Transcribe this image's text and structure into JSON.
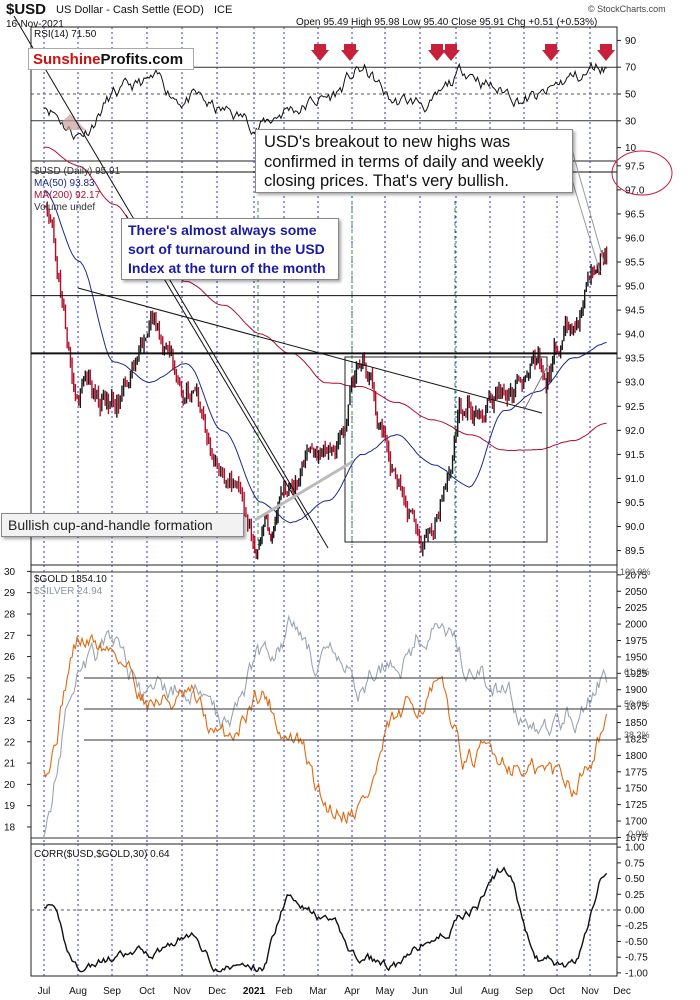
{
  "header": {
    "symbol": "$USD",
    "description": "US Dollar - Cash Settle (EOD)",
    "exchange": "ICE",
    "date": "16-Nov-2021",
    "ohlc": "Open 95.49  High 95.98  Low 95.40  Close 95.91  Chg +0.51 (+0.53%)",
    "copyright": "© StockCharts.com"
  },
  "logo": {
    "part1": "Sunshine",
    "part2": "Profits.com"
  },
  "callouts": {
    "breakout": "USD's breakout to new highs was confirmed in terms of daily and weekly closing prices. That's very bullish.",
    "turnaround": "There's almost always some sort of turnaround in the USD Index at the turn of the month",
    "cup_handle": "Bullish cup-and-handle formation"
  },
  "legends": {
    "rsi": "RSI(14) 71.50",
    "usd": "$USD (Daily) 95.91",
    "ma50": "MA(50) 93.83",
    "ma200": "MA(200) 92.17",
    "volume": "Volume undef",
    "gold": "$GOLD 1854.10",
    "silver": "$SILVER 24.94",
    "corr": "CORR($USD,$GOLD,30) 0.64"
  },
  "fib_labels": [
    "100.0%",
    "61.8%",
    "50.0%",
    "38.2%",
    "0.0%"
  ],
  "x_axis": {
    "labels": [
      "Jul",
      "Aug",
      "Sep",
      "Oct",
      "Nov",
      "Dec",
      "2021",
      "Feb",
      "Mar",
      "Apr",
      "May",
      "Jun",
      "Jul",
      "Aug",
      "Sep",
      "Oct",
      "Nov",
      "Dec"
    ]
  },
  "colors": {
    "usd_bar": "#1a1a1a",
    "usd_bar_down": "#b0102a",
    "ma50": "#1a2a8c",
    "ma200": "#b01030",
    "gold": "#e06a10",
    "silver": "#9aa6b0",
    "arrow": "#c8203a",
    "annotation_blue": "#1a1aa8",
    "logo_red": "#d01010"
  },
  "chart_data": [
    {
      "type": "line",
      "title": "RSI(14)",
      "ylim": [
        0,
        100
      ],
      "yticks": [
        10,
        30,
        50,
        70,
        90
      ],
      "x": [
        "Jul",
        "Aug",
        "Sep",
        "Oct",
        "Nov",
        "Dec",
        "2021",
        "Feb",
        "Mar",
        "Apr",
        "May",
        "Jun",
        "Jul",
        "Aug",
        "Sep",
        "Oct",
        "Nov"
      ],
      "series": [
        {
          "name": "RSI(14)",
          "values": [
            44,
            22,
            48,
            56,
            48,
            35,
            28,
            40,
            47,
            66,
            43,
            42,
            67,
            52,
            46,
            61,
            71.5
          ]
        }
      ]
    },
    {
      "type": "line",
      "title": "$USD (Daily)",
      "ylim": [
        89.2,
        97.6
      ],
      "yticks": [
        89.5,
        90.0,
        90.5,
        91.0,
        91.5,
        92.0,
        92.5,
        93.0,
        93.5,
        94.0,
        94.5,
        95.0,
        95.5,
        96.0,
        96.5,
        97.0,
        97.5
      ],
      "x": [
        "Jul",
        "Aug",
        "Sep",
        "Oct",
        "Nov",
        "Dec",
        "2021",
        "Feb",
        "Mar",
        "Apr",
        "May",
        "Jun",
        "Jul",
        "Aug",
        "Sep",
        "Oct",
        "Nov"
      ],
      "series": [
        {
          "name": "$USD (Daily)",
          "values": [
            96.9,
            93.4,
            92.4,
            93.9,
            93.0,
            91.0,
            89.8,
            90.6,
            91.6,
            93.3,
            91.0,
            90.0,
            92.7,
            92.8,
            93.2,
            94.1,
            95.91
          ]
        },
        {
          "name": "MA(50)",
          "values": [
            97.0,
            95.5,
            93.4,
            93.0,
            93.4,
            92.0,
            90.5,
            90.1,
            90.5,
            91.5,
            91.9,
            91.3,
            90.8,
            92.4,
            92.8,
            93.5,
            93.83
          ]
        },
        {
          "name": "MA(200)",
          "values": [
            97.9,
            97.5,
            96.7,
            95.8,
            95.1,
            94.6,
            94.0,
            93.6,
            93.0,
            92.9,
            92.6,
            92.2,
            91.9,
            91.6,
            91.6,
            91.8,
            92.17
          ]
        }
      ],
      "horizontal_levels": [
        94.8,
        93.6
      ]
    },
    {
      "type": "line",
      "title": "$GOLD vs $SILVER",
      "ylim_left": [
        17.2,
        30.3
      ],
      "yticks_left": [
        18,
        19,
        20,
        21,
        22,
        23,
        24,
        25,
        26,
        27,
        28,
        29,
        30
      ],
      "ylim_right": [
        1665,
        2090
      ],
      "yticks_right": [
        1675,
        1700,
        1725,
        1750,
        1775,
        1800,
        1825,
        1850,
        1875,
        1900,
        1925,
        1950,
        1975,
        2000,
        2025,
        2050,
        2075
      ],
      "x": [
        "Jul",
        "Aug",
        "Sep",
        "Oct",
        "Nov",
        "Dec",
        "2021",
        "Feb",
        "Mar",
        "Apr",
        "May",
        "Jun",
        "Jul",
        "Aug",
        "Sep",
        "Oct",
        "Nov"
      ],
      "series": [
        {
          "name": "$GOLD",
          "values": [
            1790,
            1975,
            1960,
            1890,
            1880,
            1815,
            1900,
            1830,
            1720,
            1735,
            1840,
            1900,
            1790,
            1800,
            1770,
            1765,
            1854.1
          ]
        },
        {
          "name": "$SILVER",
          "values": [
            18.0,
            26.0,
            26.5,
            24.0,
            24.5,
            23.0,
            26.0,
            27.5,
            25.5,
            24.5,
            26.0,
            27.5,
            25.5,
            24.0,
            22.5,
            23.5,
            24.94
          ]
        }
      ],
      "fib_levels": [
        {
          "label": "61.8%",
          "value": 1930
        },
        {
          "label": "50.0%",
          "value": 1882
        },
        {
          "label": "38.2%",
          "value": 1834
        }
      ]
    },
    {
      "type": "line",
      "title": "CORR($USD,$GOLD,30)",
      "ylim": [
        -1.05,
        1.05
      ],
      "yticks": [
        -1.0,
        -0.75,
        -0.5,
        -0.25,
        0.0,
        0.25,
        0.5,
        0.75,
        1.0
      ],
      "x": [
        "Jul",
        "Aug",
        "Sep",
        "Oct",
        "Nov",
        "Dec",
        "2021",
        "Feb",
        "Mar",
        "Apr",
        "May",
        "Jun",
        "Jul",
        "Aug",
        "Sep",
        "Oct",
        "Nov"
      ],
      "series": [
        {
          "name": "CORR",
          "values": [
            0.1,
            -0.9,
            -0.8,
            -0.7,
            -0.4,
            -0.9,
            -0.9,
            0.3,
            -0.2,
            -0.8,
            -0.9,
            -0.5,
            0.0,
            0.6,
            -0.8,
            -0.9,
            0.64
          ]
        }
      ]
    }
  ]
}
